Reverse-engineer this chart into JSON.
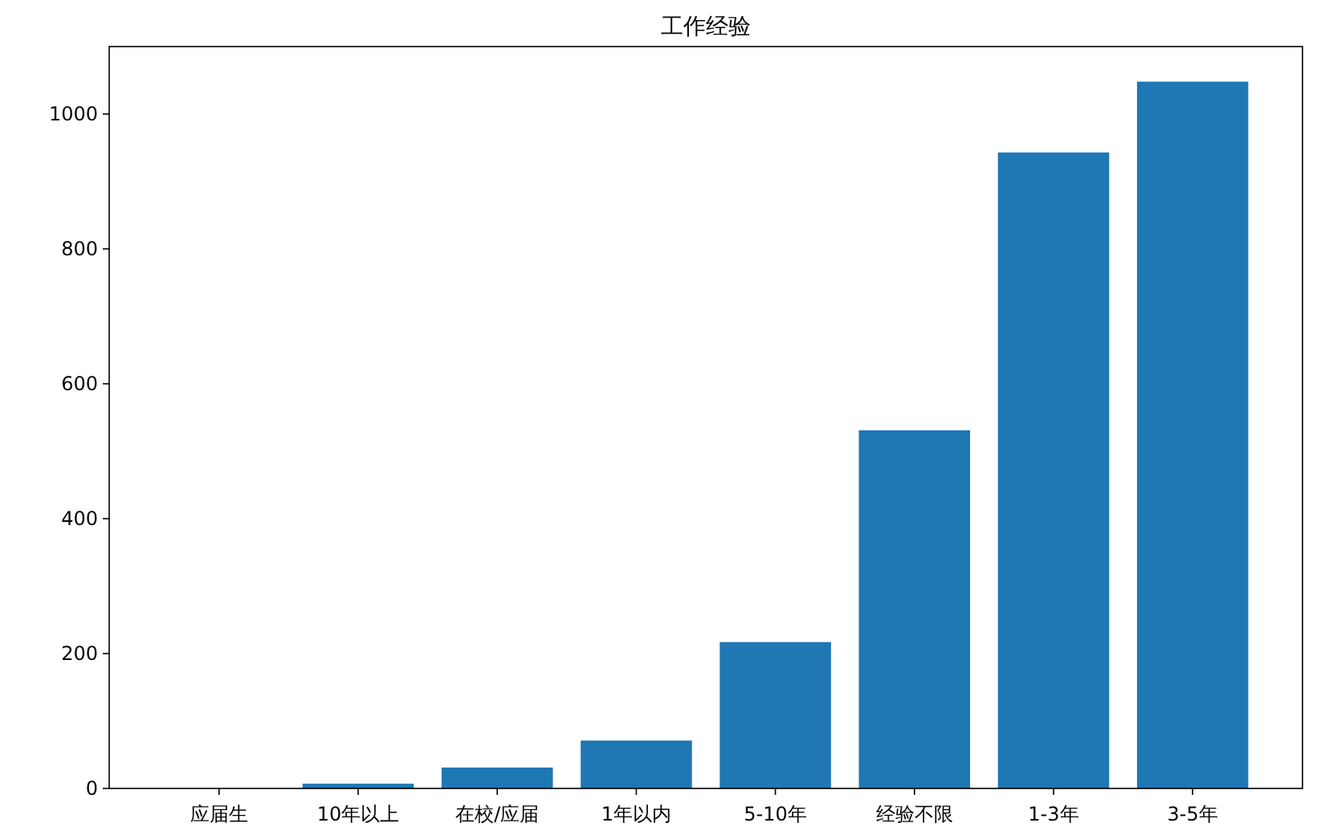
{
  "chart_data": {
    "type": "bar",
    "title": "工作经验",
    "categories": [
      "应届生",
      "10年以上",
      "在校/应届",
      "1年以内",
      "5-10年",
      "经验不限",
      "1-3年",
      "3-5年"
    ],
    "values": [
      0,
      7,
      31,
      71,
      217,
      531,
      943,
      1048
    ],
    "color": "#1f77b4",
    "ylim": [
      0,
      1100
    ],
    "yticks": [
      0,
      200,
      400,
      600,
      800,
      1000
    ],
    "grid": false
  }
}
